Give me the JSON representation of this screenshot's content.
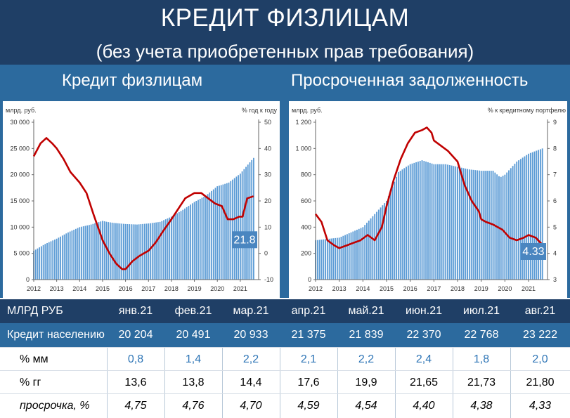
{
  "header": {
    "title": "КРЕДИТ ФИЗЛИЦАМ",
    "subtitle": "(без учета приобретенных прав требования)"
  },
  "panels": {
    "left_title": "Кредит физлицам",
    "right_title": "Просроченная задолженность"
  },
  "chart_data": [
    {
      "type": "bar+line",
      "left_unit": "млрд. руб.",
      "right_unit": "% год к году",
      "yleft_ticks": [
        "0",
        "5 000",
        "10 000",
        "15 000",
        "20 000",
        "25 000",
        "30 000"
      ],
      "yright_ticks": [
        "-10",
        "0",
        "10",
        "20",
        "30",
        "40",
        "50"
      ],
      "ylim_left": [
        0,
        30000
      ],
      "ylim_right": [
        -10,
        50
      ],
      "x_ticks": [
        "2012",
        "2013",
        "2014",
        "2015",
        "2016",
        "2017",
        "2018",
        "2019",
        "2020",
        "2021"
      ],
      "bar_color": "#5b9bd5",
      "line_color": "#c00000",
      "last_value_label": "21.8",
      "bars_series": {
        "x": [
          2012.0,
          2012.5,
          2013.0,
          2013.5,
          2014.0,
          2014.5,
          2015.0,
          2015.2,
          2015.5,
          2016.0,
          2016.5,
          2017.0,
          2017.5,
          2018.0,
          2018.5,
          2019.0,
          2019.5,
          2020.0,
          2020.3,
          2020.5,
          2021.0,
          2021.58
        ],
        "values": [
          5500,
          6800,
          7800,
          9000,
          10000,
          10500,
          11200,
          11000,
          10800,
          10600,
          10500,
          10700,
          11000,
          12000,
          13300,
          14800,
          16000,
          17800,
          18200,
          18500,
          20200,
          23200
        ]
      },
      "line_series": {
        "x": [
          2012.0,
          2012.3,
          2012.55,
          2012.8,
          2013.0,
          2013.3,
          2013.6,
          2014.0,
          2014.3,
          2014.6,
          2014.8,
          2015.0,
          2015.3,
          2015.6,
          2015.85,
          2016.0,
          2016.3,
          2016.6,
          2017.0,
          2017.3,
          2017.6,
          2018.0,
          2018.3,
          2018.6,
          2019.0,
          2019.3,
          2019.6,
          2019.9,
          2020.2,
          2020.45,
          2020.7,
          2020.95,
          2021.1,
          2021.3,
          2021.58
        ],
        "values": [
          37,
          42,
          44,
          42,
          40,
          36,
          31,
          27,
          23,
          15,
          10,
          5,
          0,
          -4,
          -6,
          -6,
          -3,
          -1,
          1,
          4,
          8,
          13,
          17,
          21,
          23,
          23,
          21,
          19,
          18,
          13,
          13,
          14,
          14,
          21,
          21.8
        ]
      }
    },
    {
      "type": "bar+line",
      "left_unit": "млрд. руб.",
      "right_unit": "% к кредитному портфелю",
      "yleft_ticks": [
        "0",
        "200",
        "400",
        "600",
        "800",
        "1 000",
        "1 200"
      ],
      "yright_ticks": [
        "3",
        "4",
        "5",
        "6",
        "7",
        "8",
        "9"
      ],
      "ylim_left": [
        0,
        1200
      ],
      "ylim_right": [
        3,
        9
      ],
      "x_ticks": [
        "2012",
        "2013",
        "2014",
        "2015",
        "2016",
        "2017",
        "2018",
        "2019",
        "2020",
        "2021"
      ],
      "bar_color": "#5b9bd5",
      "line_color": "#c00000",
      "last_value_label": "4.33",
      "bars_series": {
        "x": [
          2012.0,
          2012.5,
          2013.0,
          2013.5,
          2014.0,
          2014.5,
          2015.0,
          2015.5,
          2016.0,
          2016.5,
          2017.0,
          2017.5,
          2018.0,
          2018.5,
          2019.0,
          2019.5,
          2019.8,
          2020.0,
          2020.5,
          2021.0,
          2021.58
        ],
        "values": [
          300,
          310,
          320,
          360,
          400,
          500,
          600,
          820,
          880,
          910,
          880,
          880,
          860,
          840,
          830,
          830,
          780,
          800,
          900,
          960,
          1000
        ]
      },
      "line_series": {
        "x": [
          2012.0,
          2012.25,
          2012.5,
          2012.8,
          2013.0,
          2013.3,
          2013.6,
          2013.9,
          2014.2,
          2014.5,
          2014.8,
          2015.0,
          2015.3,
          2015.6,
          2015.9,
          2016.2,
          2016.5,
          2016.7,
          2016.9,
          2017.0,
          2017.3,
          2017.6,
          2018.0,
          2018.3,
          2018.6,
          2018.9,
          2019.0,
          2019.2,
          2019.5,
          2019.9,
          2020.2,
          2020.5,
          2020.8,
          2021.0,
          2021.3,
          2021.58
        ],
        "values": [
          5.5,
          5.2,
          4.5,
          4.3,
          4.2,
          4.3,
          4.4,
          4.5,
          4.7,
          4.5,
          5.0,
          5.8,
          6.8,
          7.6,
          8.2,
          8.6,
          8.7,
          8.8,
          8.6,
          8.3,
          8.1,
          7.9,
          7.5,
          6.6,
          6.0,
          5.6,
          5.3,
          5.2,
          5.1,
          4.9,
          4.6,
          4.5,
          4.6,
          4.7,
          4.6,
          4.33
        ]
      }
    }
  ],
  "table": {
    "columns": [
      "МЛРД РУБ",
      "янв.21",
      "фев.21",
      "мар.21",
      "апр.21",
      "май.21",
      "июн.21",
      "июл.21",
      "авг.21"
    ],
    "rows": [
      {
        "label": "Кредит населению",
        "values": [
          "20 204",
          "20 491",
          "20 933",
          "21 375",
          "21 839",
          "22 370",
          "22 768",
          "23 222"
        ]
      },
      {
        "label": "% мм",
        "values": [
          "0,8",
          "1,4",
          "2,2",
          "2,1",
          "2,2",
          "2,4",
          "1,8",
          "2,0"
        ]
      },
      {
        "label": "% гг",
        "values": [
          "13,6",
          "13,8",
          "14,4",
          "17,6",
          "19,9",
          "21,65",
          "21,73",
          "21,80"
        ]
      },
      {
        "label": "просрочка, %",
        "values": [
          "4,75",
          "4,76",
          "4,70",
          "4,59",
          "4,54",
          "4,40",
          "4,38",
          "4,33"
        ]
      }
    ]
  }
}
